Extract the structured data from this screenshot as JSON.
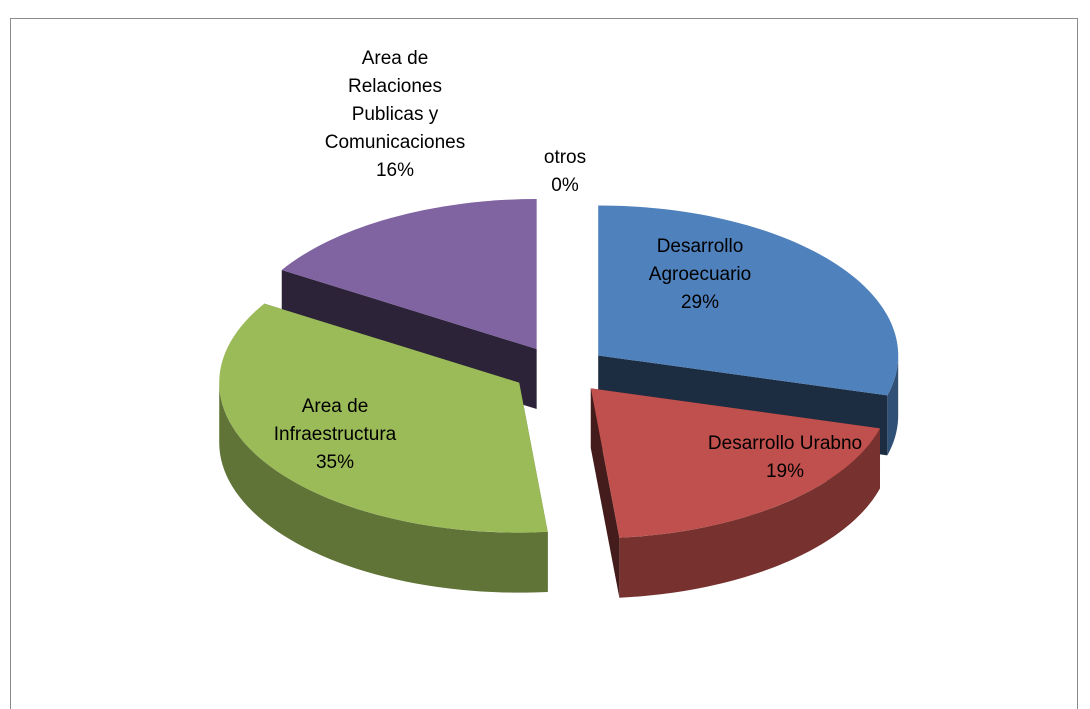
{
  "chart_data": {
    "type": "pie3d",
    "categories": [
      "Desarrollo Agroecuario",
      "Desarrollo Urabno",
      "Area de Infraestructura",
      "Area de Relaciones Publicas y Comunicaciones",
      "otros"
    ],
    "values": [
      29,
      19,
      35,
      16,
      0
    ],
    "value_labels": [
      "29%",
      "19%",
      "35%",
      "16%",
      "0%"
    ],
    "colors": [
      "#4f81bd",
      "#c0504d",
      "#9bbb59",
      "#8064a2",
      "#4bacc6"
    ]
  }
}
